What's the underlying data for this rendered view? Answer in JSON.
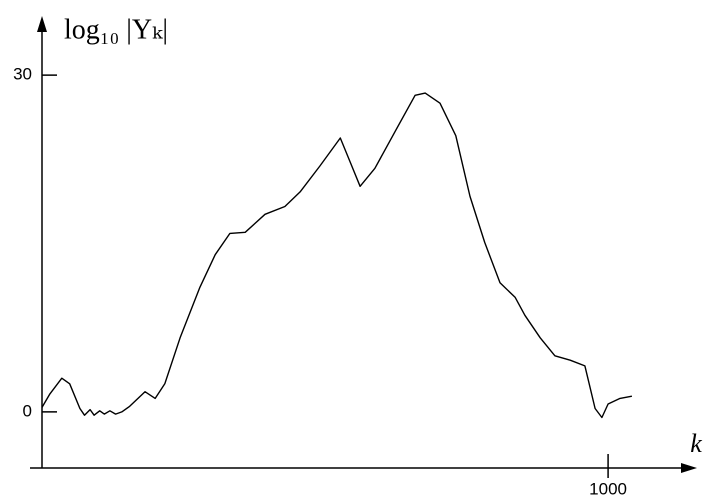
{
  "chart_data": {
    "type": "line",
    "y_label": "log₁₀ |Yₖ|",
    "x_label": "k",
    "x": [
      0,
      14,
      35,
      49,
      67,
      75,
      85,
      92,
      102,
      110,
      120,
      130,
      141,
      155,
      182,
      200,
      217,
      244,
      279,
      306,
      332,
      359,
      394,
      429,
      456,
      491,
      527,
      544,
      562,
      588,
      624,
      659,
      677,
      703,
      731,
      756,
      782,
      809,
      836,
      853,
      880,
      906,
      933,
      959,
      977,
      989,
      1000,
      1021,
      1042
    ],
    "series": [
      {
        "color": "#000000",
        "values": [
          0.4,
          1.6,
          3.0,
          2.5,
          0.3,
          -0.3,
          0.2,
          -0.3,
          0.1,
          -0.2,
          0.1,
          -0.2,
          0,
          0.5,
          1.8,
          1.2,
          2.5,
          6.6,
          11.1,
          14,
          15.9,
          16,
          17.6,
          18.3,
          19.6,
          21.9,
          24.4,
          22.3,
          20.1,
          21.7,
          25,
          28.2,
          28.4,
          27.5,
          24.6,
          19.2,
          15.1,
          11.5,
          10.2,
          8.6,
          6.6,
          5,
          4.6,
          4.1,
          0.3,
          -0.5,
          0.7,
          1.2,
          1.4
        ]
      }
    ],
    "xlim": [
      0,
      1150
    ],
    "ylim": [
      -5,
      35
    ],
    "xticks": [
      1000
    ],
    "yticks": [
      0,
      30
    ]
  }
}
